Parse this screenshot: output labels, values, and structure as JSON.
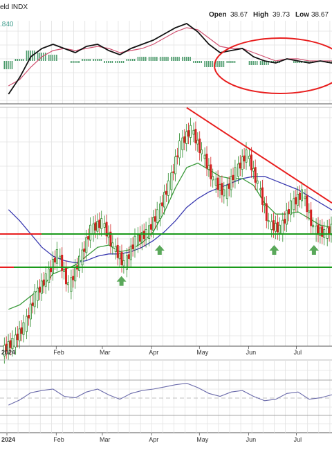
{
  "header": {
    "symbol_fragment": "eld INDX",
    "open_label": "Open",
    "open_value": "38.67",
    "high_label": "High",
    "high_value": "39.73",
    "low_label": "Low",
    "low_value": "38.67",
    "macd_readout": ".840"
  },
  "colors": {
    "price_up": "#2a8a2a",
    "price_down": "#d42020",
    "ma_fast": "#3a9a3a",
    "ma_slow": "#3a3ab0",
    "trendline": "#e81e1e",
    "support_line": "#1a9a1a",
    "arrow": "#5aa85a",
    "macd_line": "#111111",
    "macd_signal": "#d05070",
    "histogram": "#4a9a6a",
    "rsi_line": "#6a6aaa"
  },
  "chart_data": [
    {
      "type": "line",
      "panel": "macd",
      "x": [
        "2024-01-02",
        "2024-01-09",
        "2024-01-16",
        "2024-01-23",
        "2024-01-30",
        "2024-02-06",
        "2024-02-13",
        "2024-02-20",
        "2024-02-27",
        "2024-03-05",
        "2024-03-12",
        "2024-03-19",
        "2024-03-26",
        "2024-04-02",
        "2024-04-09",
        "2024-04-16",
        "2024-04-23",
        "2024-04-30",
        "2024-05-07",
        "2024-05-14",
        "2024-05-21",
        "2024-05-28",
        "2024-06-04",
        "2024-06-11",
        "2024-06-18",
        "2024-06-25",
        "2024-07-02",
        "2024-07-09",
        "2024-07-16",
        "2024-07-23",
        "2024-07-30"
      ],
      "series": [
        {
          "values": [
            -1.6,
            -0.8,
            0.2,
            0.6,
            0.8,
            0.6,
            0.4,
            0.7,
            0.8,
            0.5,
            0.3,
            0.6,
            0.8,
            1.0,
            1.3,
            1.6,
            1.8,
            1.4,
            0.8,
            0.4,
            0.5,
            0.6,
            0.2,
            0.0,
            -0.1,
            0.1,
            0.0,
            -0.1,
            0.0,
            -0.1,
            0.0
          ]
        },
        {
          "values": [
            -1.2,
            -0.9,
            -0.3,
            0.2,
            0.5,
            0.6,
            0.5,
            0.6,
            0.7,
            0.6,
            0.4,
            0.5,
            0.6,
            0.8,
            1.1,
            1.4,
            1.6,
            1.5,
            1.1,
            0.7,
            0.6,
            0.6,
            0.4,
            0.2,
            0.0,
            0.1,
            0.1,
            0.0,
            0.0,
            0.0,
            0.0
          ]
        }
      ],
      "histogram": [
        -0.4,
        0.1,
        0.5,
        0.4,
        0.3,
        0.0,
        -0.1,
        0.1,
        0.1,
        -0.1,
        -0.1,
        0.1,
        0.2,
        0.2,
        0.2,
        0.2,
        0.2,
        -0.1,
        -0.3,
        -0.3,
        -0.1,
        0.0,
        -0.2,
        -0.2,
        -0.1,
        0.0,
        -0.1,
        -0.1,
        0.0,
        -0.1,
        0.0
      ],
      "annotations": [
        "red ellipse around Jun-Jul MACD flattening"
      ]
    },
    {
      "type": "candlestick",
      "panel": "price",
      "months": [
        "2024",
        "Feb",
        "Mar",
        "Apr",
        "May",
        "Jun",
        "Jul"
      ],
      "x": [
        "2024-01-02",
        "2024-01-09",
        "2024-01-16",
        "2024-01-23",
        "2024-01-30",
        "2024-02-06",
        "2024-02-13",
        "2024-02-20",
        "2024-02-27",
        "2024-03-05",
        "2024-03-12",
        "2024-03-19",
        "2024-03-26",
        "2024-04-02",
        "2024-04-09",
        "2024-04-16",
        "2024-04-23",
        "2024-04-30",
        "2024-05-07",
        "2024-05-14",
        "2024-05-21",
        "2024-05-28",
        "2024-06-04",
        "2024-06-11",
        "2024-06-18",
        "2024-06-25",
        "2024-07-02",
        "2024-07-09",
        "2024-07-16",
        "2024-07-23",
        "2024-07-30"
      ],
      "close": [
        33.5,
        34.2,
        35.6,
        36.4,
        37.5,
        36.0,
        37.2,
        38.6,
        38.9,
        37.8,
        37.0,
        38.1,
        38.4,
        39.3,
        40.6,
        42.4,
        43.1,
        42.0,
        40.8,
        40.2,
        41.2,
        42.0,
        40.6,
        38.8,
        38.6,
        39.7,
        40.2,
        38.6,
        38.4,
        38.8,
        38.7
      ],
      "ma_fast": [
        35.0,
        35.2,
        35.6,
        36.0,
        36.6,
        36.8,
        37.0,
        37.4,
        37.8,
        37.9,
        37.6,
        37.7,
        38.0,
        38.5,
        39.4,
        40.5,
        41.4,
        41.6,
        41.3,
        41.0,
        40.9,
        40.9,
        40.6,
        39.8,
        39.3,
        39.3,
        39.4,
        39.1,
        38.8,
        38.7,
        38.7
      ],
      "ma_slow": [
        39.5,
        39.0,
        38.4,
        37.8,
        37.4,
        37.2,
        37.1,
        37.2,
        37.4,
        37.5,
        37.5,
        37.6,
        37.8,
        38.1,
        38.5,
        39.0,
        39.6,
        40.0,
        40.3,
        40.5,
        40.7,
        40.9,
        41.0,
        41.0,
        40.8,
        40.6,
        40.4,
        40.1,
        39.8,
        39.5,
        39.2
      ],
      "support_levels": [
        38.4,
        36.9
      ],
      "trendline": {
        "from": [
          "2024-04-23",
          44.1
        ],
        "to": [
          "2024-07-30",
          39.8
        ]
      },
      "annotations": [
        "green up arrows marking tests of support in Mar, Apr, Jun and Jul"
      ]
    },
    {
      "type": "line",
      "panel": "rsi",
      "x": [
        "2024-01-02",
        "2024-01-09",
        "2024-01-16",
        "2024-01-23",
        "2024-01-30",
        "2024-02-06",
        "2024-02-13",
        "2024-02-20",
        "2024-02-27",
        "2024-03-05",
        "2024-03-12",
        "2024-03-19",
        "2024-03-26",
        "2024-04-02",
        "2024-04-09",
        "2024-04-16",
        "2024-04-23",
        "2024-04-30",
        "2024-05-07",
        "2024-05-14",
        "2024-05-21",
        "2024-05-28",
        "2024-06-04",
        "2024-06-11",
        "2024-06-18",
        "2024-06-25",
        "2024-07-02",
        "2024-07-09",
        "2024-07-16",
        "2024-07-23",
        "2024-07-30"
      ],
      "series": [
        {
          "values": [
            38,
            45,
            55,
            58,
            60,
            50,
            48,
            56,
            60,
            52,
            46,
            54,
            58,
            60,
            63,
            66,
            68,
            62,
            54,
            50,
            56,
            58,
            50,
            44,
            46,
            54,
            56,
            46,
            48,
            52,
            50
          ]
        }
      ],
      "ylim": [
        0,
        100
      ]
    }
  ],
  "xaxis_top": {
    "labels": [
      "2024",
      "Feb",
      "Mar",
      "Apr",
      "May",
      "Jun",
      "Jul"
    ]
  },
  "xaxis_bottom": {
    "labels": [
      "2024",
      "Feb",
      "Mar",
      "Apr",
      "May",
      "Jun",
      "Jul"
    ]
  }
}
